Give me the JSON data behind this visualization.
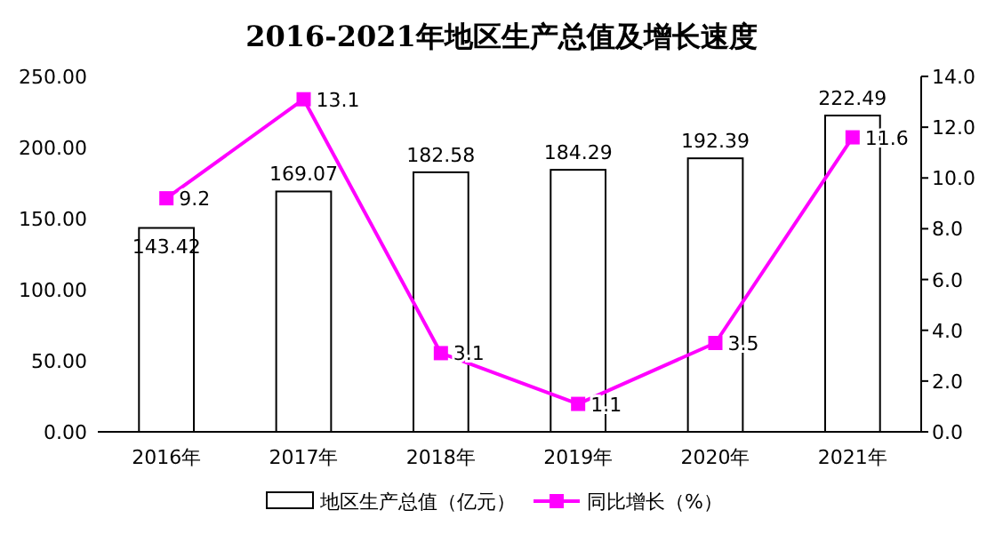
{
  "chart_data": {
    "type": "bar",
    "title": "2016-2021年地区生产总值及增长速度",
    "categories": [
      "2016年",
      "2017年",
      "2018年",
      "2019年",
      "2020年",
      "2021年"
    ],
    "series": [
      {
        "name": "地区生产总值（亿元）",
        "color": "#ffffff",
        "values": [
          143.42,
          169.07,
          182.58,
          184.29,
          192.39,
          222.49
        ]
      },
      {
        "name": "同比增长（%）",
        "type": "line",
        "axis": "y2",
        "color": "#ff00ff",
        "values": [
          9.2,
          13.1,
          3.1,
          1.1,
          3.5,
          11.6
        ]
      }
    ],
    "ylim": [
      0,
      250
    ],
    "yticks": [
      {
        "value": 0,
        "label": "0.00"
      },
      {
        "value": 50,
        "label": "50.00"
      },
      {
        "value": 100,
        "label": "100.00"
      },
      {
        "value": 150,
        "label": "150.00"
      },
      {
        "value": 200,
        "label": "200.00"
      },
      {
        "value": 250,
        "label": "250.00"
      }
    ],
    "y2lim": [
      0,
      14
    ],
    "y2ticks": [
      {
        "value": 0,
        "label": "0.0"
      },
      {
        "value": 2,
        "label": "2.0"
      },
      {
        "value": 4,
        "label": "4.0"
      },
      {
        "value": 6,
        "label": "6.0"
      },
      {
        "value": 8,
        "label": "8.0"
      },
      {
        "value": 10,
        "label": "10.0"
      },
      {
        "value": 12,
        "label": "12.0"
      },
      {
        "value": 14,
        "label": "14.0"
      }
    ],
    "marker": "square",
    "data_labels": true,
    "legend": "bottom",
    "grid": false
  }
}
